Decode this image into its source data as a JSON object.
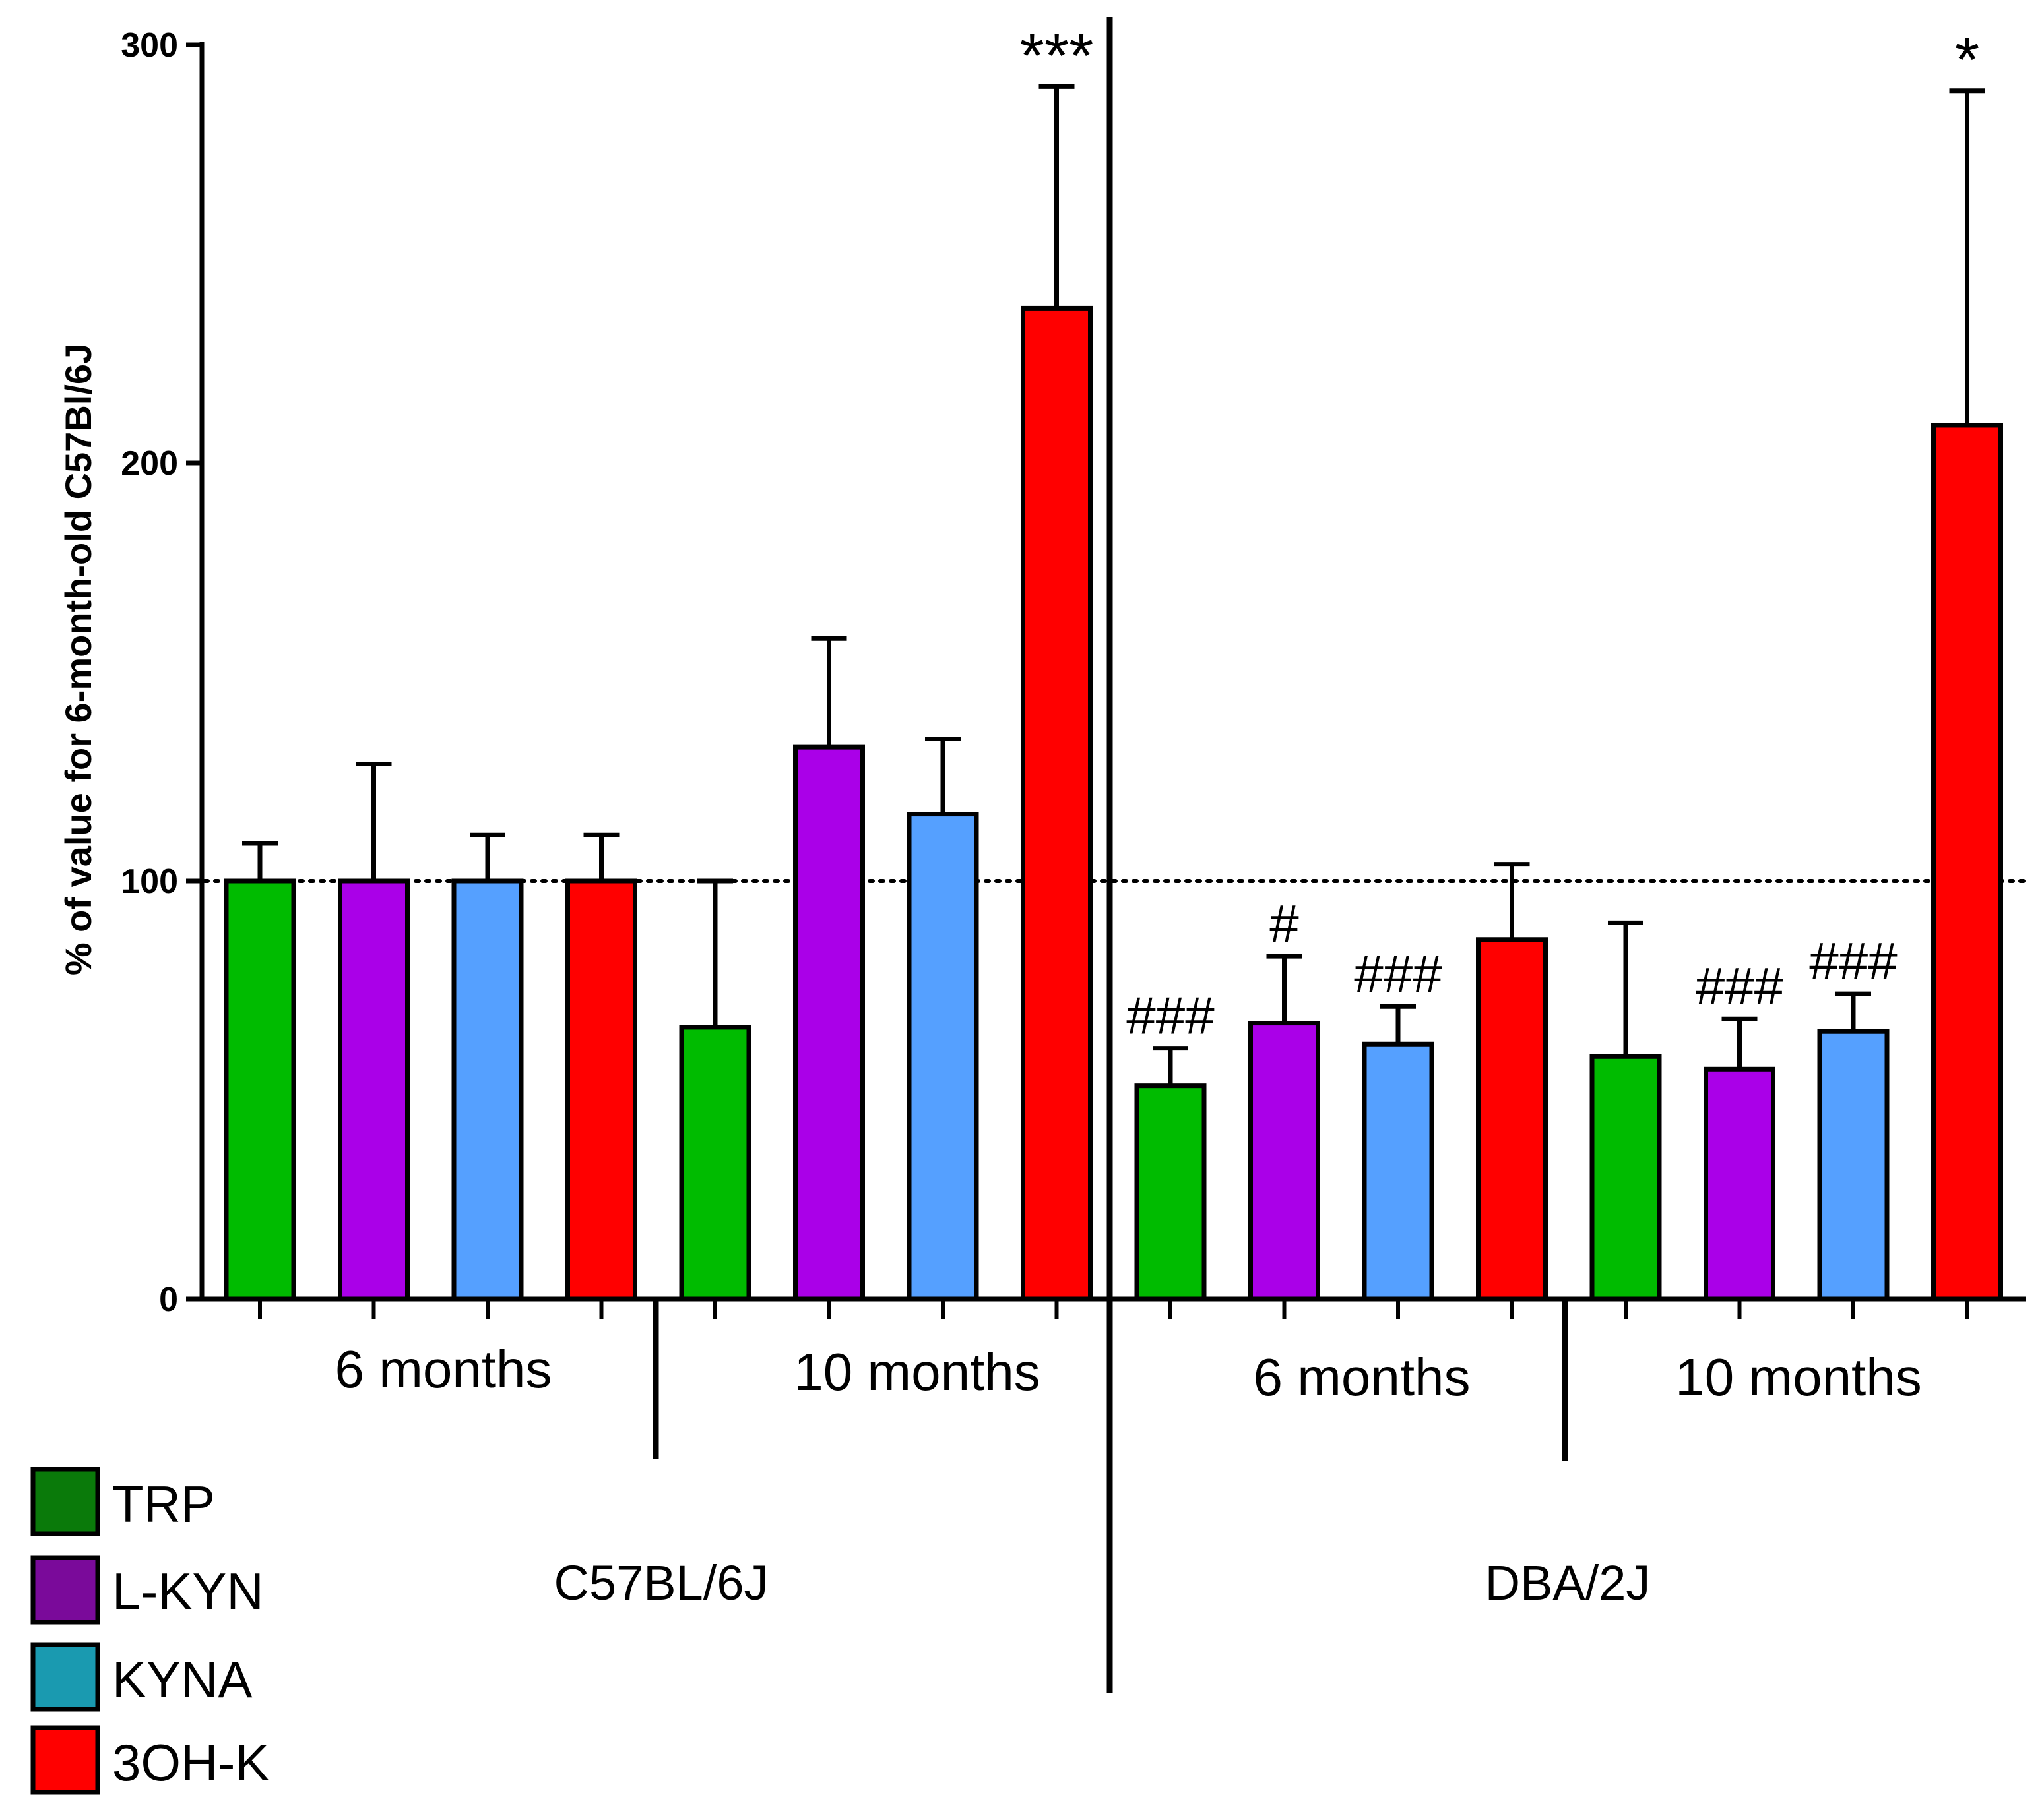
{
  "chart_data": {
    "type": "bar",
    "ylabel": "% of value for 6-month-old C57Bl/6J",
    "ylim": [
      0,
      300
    ],
    "yticks": [
      "0",
      "100",
      "200",
      "300"
    ],
    "yticks_values": [
      0,
      100,
      200,
      300
    ],
    "reference_line": 100,
    "strains": [
      "C57BL/6J",
      "DBA/2J"
    ],
    "ages": [
      "6 months",
      "10 months",
      "6 months",
      "10 months"
    ],
    "series_names": [
      "TRP",
      "L-KYN",
      "KYNA",
      "3OH-K"
    ],
    "legend": [
      {
        "label": "TRP",
        "color": "#0a7a0a"
      },
      {
        "label": "L-KYN",
        "color": "#7a0a9a"
      },
      {
        "label": "KYNA",
        "color": "#1a9ab0"
      },
      {
        "label": "3OH-K",
        "color": "#ff0000"
      }
    ],
    "bar_colors": [
      "#00bb00",
      "#aa00e8",
      "#55a0ff",
      "#ff0000"
    ],
    "groups": [
      {
        "strain": "C57BL/6J",
        "age": "6 months",
        "values": [
          100,
          100,
          100,
          100
        ],
        "errors": [
          9,
          28,
          11,
          11
        ],
        "annotations": [
          "",
          "",
          "",
          ""
        ]
      },
      {
        "strain": "C57BL/6J",
        "age": "10 months",
        "values": [
          65,
          132,
          116,
          237
        ],
        "errors": [
          35,
          26,
          18,
          53
        ],
        "annotations": [
          "",
          "",
          "",
          "***"
        ]
      },
      {
        "strain": "DBA/2J",
        "age": "6 months",
        "values": [
          51,
          66,
          61,
          86
        ],
        "errors": [
          9,
          16,
          9,
          18
        ],
        "annotations": [
          "###",
          "#",
          "###",
          ""
        ]
      },
      {
        "strain": "DBA/2J",
        "age": "10 months",
        "values": [
          58,
          55,
          64,
          209
        ],
        "errors": [
          32,
          12,
          9,
          80
        ],
        "annotations": [
          "",
          "###",
          "###",
          "*"
        ]
      }
    ]
  }
}
